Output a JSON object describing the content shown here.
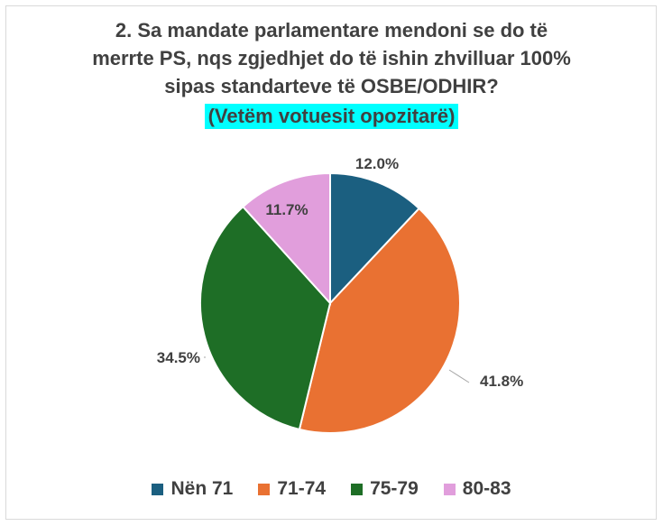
{
  "chart_data": {
    "type": "pie",
    "title_lines": [
      "2. Sa mandate parlamentare mendoni se do të",
      "merrte PS, nqs zgjedhjet do të ishin zhvilluar 100%",
      "sipas standarteve të OSBE/ODHIR?"
    ],
    "subtitle": "(Vetëm votuesit opozitarë)",
    "subtitle_highlight": "#00ffff",
    "slices": [
      {
        "name": "Nën 71",
        "value": 12.0,
        "label": "12.0%",
        "color": "#1b5f80"
      },
      {
        "name": "71-74",
        "value": 41.8,
        "label": "41.8%",
        "color": "#e97132"
      },
      {
        "name": "75-79",
        "value": 34.5,
        "label": "34.5%",
        "color": "#1e6e26"
      },
      {
        "name": "80-83",
        "value": 11.7,
        "label": "11.7%",
        "color": "#e19edc"
      }
    ],
    "legend_position": "bottom"
  }
}
